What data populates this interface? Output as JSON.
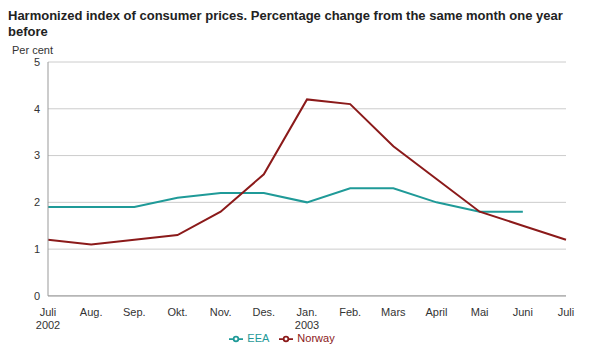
{
  "chart_data": {
    "type": "line",
    "title": "Harmonized index of consumer prices. Percentage change from the same month one year before",
    "y_label": "Per cent",
    "categories": [
      "Juli\n2002",
      "Aug.",
      "Sep.",
      "Okt.",
      "Nov.",
      "Des.",
      "Jan.\n2003",
      "Feb.",
      "Mars",
      "April",
      "Mai",
      "Juni",
      "Juli"
    ],
    "series": [
      {
        "name": "EEA",
        "color": "#1f9a98",
        "values": [
          1.9,
          1.9,
          1.9,
          2.1,
          2.2,
          2.2,
          2.0,
          2.3,
          2.3,
          2.0,
          1.8,
          1.8,
          null
        ]
      },
      {
        "name": "Norway",
        "color": "#8b1a1a",
        "values": [
          1.2,
          1.1,
          1.2,
          1.3,
          1.8,
          2.6,
          4.2,
          4.1,
          3.2,
          2.5,
          1.8,
          1.5,
          1.2
        ]
      }
    ],
    "ylim": [
      0,
      5
    ],
    "yticks": [
      0,
      1,
      2,
      3,
      4,
      5
    ],
    "grid": true,
    "legend": "bottom"
  }
}
